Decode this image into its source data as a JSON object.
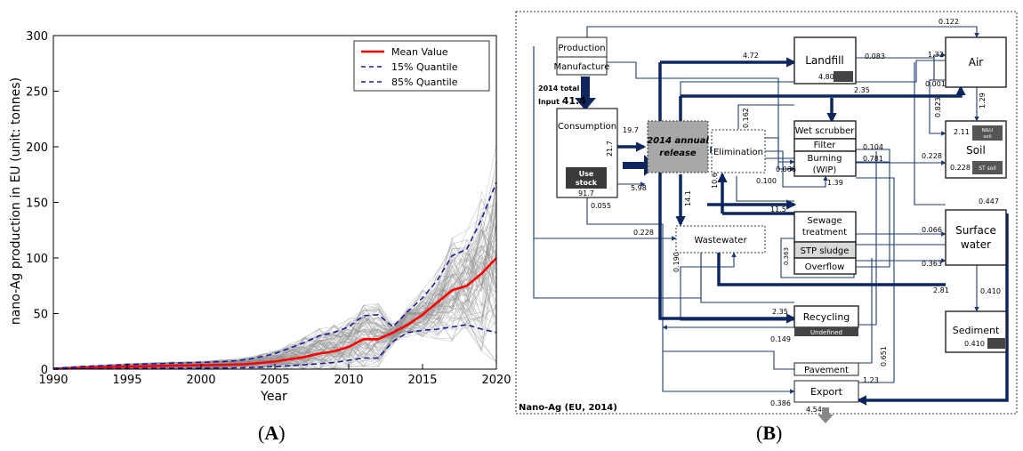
{
  "panels": {
    "a_prefix": "(",
    "a_letter": "A",
    "a_suffix": ")",
    "b_prefix": "(",
    "b_letter": "B",
    "b_suffix": ")"
  },
  "chart_data": {
    "type": "line",
    "title": "",
    "xlabel": "Year",
    "ylabel": "nano-Ag production in EU (unit: tonnes)",
    "xlim": [
      1990,
      2020
    ],
    "ylim": [
      0,
      300
    ],
    "xticks": [
      1990,
      1995,
      2000,
      2005,
      2010,
      2015,
      2020
    ],
    "yticks": [
      0,
      50,
      100,
      150,
      200,
      250,
      300
    ],
    "grid": false,
    "legend_position": "top-right",
    "colors": {
      "mean": "#ff0000",
      "quantile": "#1a1aa0",
      "ensemble": "#8c8c8c"
    },
    "series": [
      {
        "name": "Mean Value",
        "style": "solid",
        "x": [
          1990,
          1991,
          1992,
          1993,
          1994,
          1995,
          1996,
          1997,
          1998,
          1999,
          2000,
          2001,
          2002,
          2003,
          2004,
          2005,
          2006,
          2007,
          2008,
          2009,
          2010,
          2011,
          2012,
          2013,
          2014,
          2015,
          2016,
          2017,
          2018,
          2019,
          2020
        ],
        "y": [
          0.3,
          0.8,
          1.2,
          1.6,
          2.0,
          2.3,
          2.6,
          2.9,
          3.1,
          3.3,
          3.5,
          3.8,
          4.0,
          4.5,
          5.5,
          7,
          9,
          11,
          14,
          16,
          20,
          27,
          27,
          33,
          40,
          49,
          60,
          71,
          75,
          86,
          100
        ]
      },
      {
        "name": "15% Quantile",
        "style": "dashed",
        "x": [
          1990,
          1991,
          1992,
          1993,
          1994,
          1995,
          1996,
          1997,
          1998,
          1999,
          2000,
          2001,
          2002,
          2003,
          2004,
          2005,
          2006,
          2007,
          2008,
          2009,
          2010,
          2011,
          2012,
          2013,
          2014,
          2015,
          2016,
          2017,
          2018,
          2019,
          2020
        ],
        "y": [
          0,
          0.2,
          0.3,
          0.4,
          0.5,
          0.6,
          0.7,
          0.8,
          0.9,
          1.0,
          1.0,
          1.1,
          1.2,
          1.4,
          1.8,
          2.5,
          3,
          4,
          5,
          6,
          8,
          10,
          10,
          25,
          33,
          35,
          36,
          38,
          40,
          36,
          33
        ]
      },
      {
        "name": "85% Quantile",
        "style": "dashed",
        "x": [
          1990,
          1991,
          1992,
          1993,
          1994,
          1995,
          1996,
          1997,
          1998,
          1999,
          2000,
          2001,
          2002,
          2003,
          2004,
          2005,
          2006,
          2007,
          2008,
          2009,
          2010,
          2011,
          2012,
          2013,
          2014,
          2015,
          2016,
          2017,
          2018,
          2019,
          2020
        ],
        "y": [
          0.8,
          1.6,
          2.4,
          3.0,
          3.6,
          4.2,
          4.6,
          5.0,
          5.4,
          5.8,
          6.2,
          6.6,
          7.2,
          8.5,
          11,
          14,
          19,
          24,
          30,
          33,
          38,
          48,
          49,
          38,
          52,
          64,
          80,
          102,
          108,
          135,
          168
        ]
      }
    ]
  },
  "diagram": {
    "nodes": {
      "production": "Production",
      "manufacture": "Manufacture",
      "input_line1": "2014 total",
      "input_line2_prefix": "Input ",
      "input_value": "41.4",
      "consumption": "Consumption",
      "use_stock_1": "Use",
      "use_stock_2": "stock",
      "release_1": "2014 annual",
      "release_2": "release",
      "elimination": "Elimination",
      "landfill": "Landfill",
      "landfill_stock": "4.80",
      "wet_scrubber": "Wet scrubber",
      "filter": "Filter",
      "burning_1": "Burning",
      "burning_2": "(WIP)",
      "air": "Air",
      "soil": "Soil",
      "nu_soil_1": "N&U",
      "nu_soil_2": "soil",
      "nu_soil_value": "2.11",
      "st_soil": "ST soil",
      "st_soil_value": "0.228",
      "sewage_1": "Sewage",
      "sewage_2": "treatment",
      "stp_sludge": "STP sludge",
      "overflow": "Overflow",
      "wastewater": "Wastewater",
      "surface_water_1": "Surface",
      "surface_water_2": "water",
      "recycling": "Recycling",
      "undefined": "Undefined",
      "sediment": "Sediment",
      "sediment_value": "0.410",
      "pavement": "Pavement",
      "export": "Export",
      "frame_title": "Nano-Ag (EU, 2014)"
    },
    "flows": {
      "f_0122": "0.122",
      "f_472": "4.72",
      "f_0083": "0.083",
      "f_132": "1.32",
      "f_235a": "2.35",
      "f_0001": "0.001",
      "f_0823": "0.823",
      "f_129": "1.29",
      "f_0162": "0.162",
      "f_197": "19.7",
      "f_217": "21.7",
      "f_0066a": "0.066",
      "f_0104": "0.104",
      "f_0781": "0.781",
      "f_0228a": "0.228",
      "f_917": "91.7",
      "f_598": "5.98",
      "f_0100": "0.100",
      "f_106": "10.6",
      "f_139": "1.39",
      "f_0055": "0.055",
      "f_141": "14.1",
      "f_115": "11.5",
      "f_0447": "0.447",
      "f_0228b": "0.228",
      "f_0066b": "0.066",
      "f_0363a": "0.363",
      "f_0363b": "0.363",
      "f_0190": "0.190",
      "f_281": "2.81",
      "f_0410": "0.410",
      "f_235b": "2.35",
      "f_0149": "0.149",
      "f_0651": "0.651",
      "f_123": "1.23",
      "f_0386": "0.386",
      "f_454": "4.54"
    }
  }
}
